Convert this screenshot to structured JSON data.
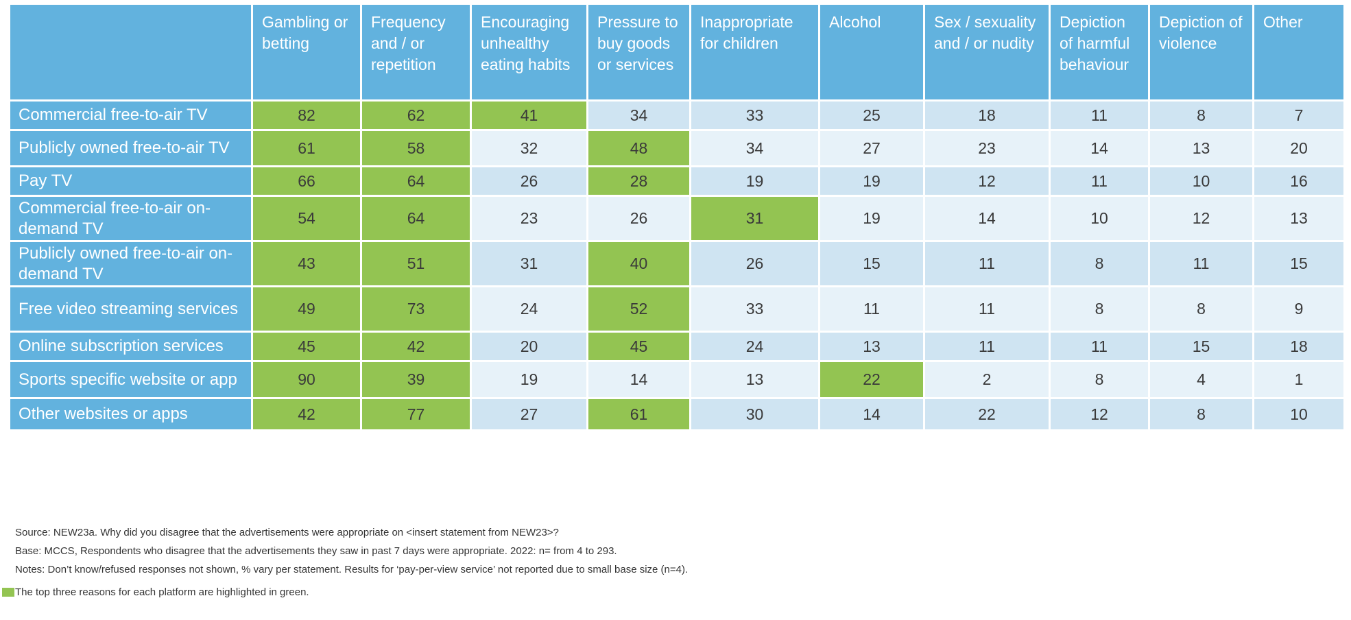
{
  "chart_data": {
    "type": "table",
    "columns": [
      "Gambling or betting",
      "Frequency and / or repetition",
      "Encouraging unhealthy eating habits",
      "Pressure to buy goods or services",
      "Inappropriate for children",
      "Alcohol",
      "Sex / sexuality and / or nudity",
      "Depiction of harmful behaviour",
      "Depiction of violence",
      "Other"
    ],
    "rows": [
      {
        "label": "Commercial free-to-air TV",
        "values": [
          82,
          62,
          41,
          34,
          33,
          25,
          18,
          11,
          8,
          7
        ],
        "highlight": [
          0,
          1,
          2
        ]
      },
      {
        "label": "Publicly owned free-to-air TV",
        "values": [
          61,
          58,
          32,
          48,
          34,
          27,
          23,
          14,
          13,
          20
        ],
        "highlight": [
          0,
          1,
          3
        ]
      },
      {
        "label": "Pay TV",
        "values": [
          66,
          64,
          26,
          28,
          19,
          19,
          12,
          11,
          10,
          16
        ],
        "highlight": [
          0,
          1,
          3
        ]
      },
      {
        "label": "Commercial free-to-air on-demand TV",
        "values": [
          54,
          64,
          23,
          26,
          31,
          19,
          14,
          10,
          12,
          13
        ],
        "highlight": [
          0,
          1,
          4
        ]
      },
      {
        "label": "Publicly owned free-to-air on-demand TV",
        "values": [
          43,
          51,
          31,
          40,
          26,
          15,
          11,
          8,
          11,
          15
        ],
        "highlight": [
          0,
          1,
          3
        ]
      },
      {
        "label": "Free video streaming services",
        "values": [
          49,
          73,
          24,
          52,
          33,
          11,
          11,
          8,
          8,
          9
        ],
        "highlight": [
          0,
          1,
          3
        ]
      },
      {
        "label": "Online subscription services",
        "values": [
          45,
          42,
          20,
          45,
          24,
          13,
          11,
          11,
          15,
          18
        ],
        "highlight": [
          0,
          1,
          3
        ]
      },
      {
        "label": "Sports specific website or app",
        "values": [
          90,
          39,
          19,
          14,
          13,
          22,
          2,
          8,
          4,
          1
        ],
        "highlight": [
          0,
          1,
          5
        ]
      },
      {
        "label": "Other websites or apps",
        "values": [
          42,
          77,
          27,
          61,
          30,
          14,
          22,
          12,
          8,
          10
        ],
        "highlight": [
          0,
          1,
          3
        ]
      }
    ]
  },
  "colors": {
    "header_blue": "#62b2de",
    "highlight_green": "#93c452",
    "row_tint_dark": "#cfe4f2",
    "row_tint_light": "#e7f2f9"
  },
  "footer": {
    "source": "Source: NEW23a. Why did you disagree that the advertisements were appropriate on <insert statement from NEW23>?",
    "base": "Base: MCCS, Respondents who disagree that the advertisements they saw in past 7 days were appropriate. 2022: n= from 4 to 293.",
    "notes": "Notes: Don’t know/refused responses not shown, % vary per statement. Results for ‘pay-per-view service’ not reported due to small base size (n=4).",
    "legend": "The top three reasons for each platform are highlighted in green."
  }
}
